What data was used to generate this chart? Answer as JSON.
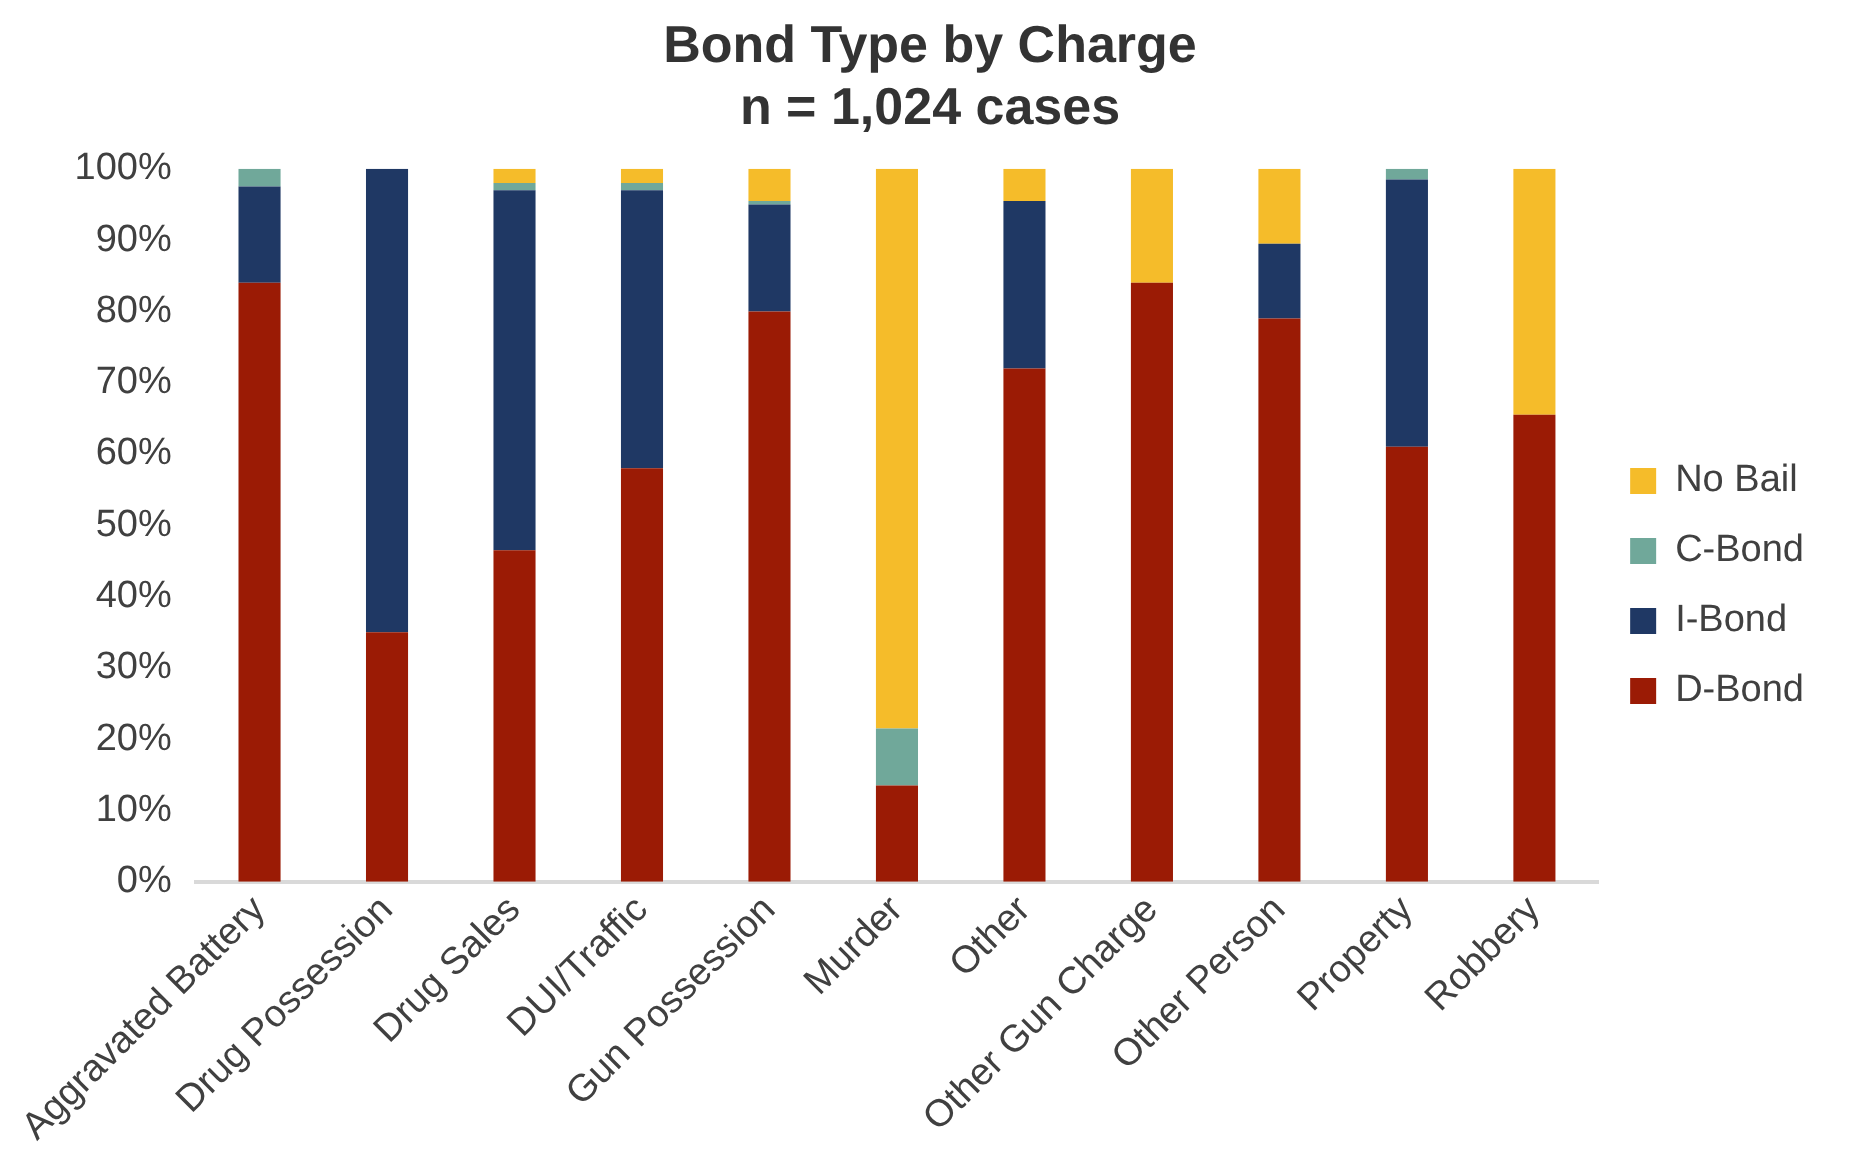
{
  "chart_data": {
    "type": "bar",
    "title": "Bond Type by Charge",
    "subtitle": "n = 1,024 cases",
    "categories": [
      "Aggravated Battery",
      "Drug Possession",
      "Drug Sales",
      "DUI/Traffic",
      "Gun Possession",
      "Murder",
      "Other",
      "Other Gun Charge",
      "Other Person",
      "Property",
      "Robbery"
    ],
    "stacked": true,
    "series": [
      {
        "name": "D-Bond",
        "color": "#9b1b05",
        "values": [
          84,
          35,
          46.5,
          58,
          80,
          13.5,
          72,
          84,
          79,
          61,
          65.5
        ]
      },
      {
        "name": "I-Bond",
        "color": "#1f3864",
        "values": [
          13.5,
          65,
          50.5,
          39,
          15,
          0,
          23.5,
          0,
          10.5,
          37.5,
          0
        ]
      },
      {
        "name": "C-Bond",
        "color": "#70a89a",
        "values": [
          2.5,
          0,
          1,
          1,
          0.5,
          8,
          0,
          0,
          0,
          1.5,
          0
        ]
      },
      {
        "name": "No Bail",
        "color": "#f5bc2a",
        "values": [
          0,
          0,
          2,
          2,
          4.5,
          78.5,
          4.5,
          16,
          10.5,
          0,
          34.5
        ]
      }
    ],
    "ylim": [
      0,
      100
    ],
    "yticks": [
      {
        "value": 0,
        "label": "0%"
      },
      {
        "value": 10,
        "label": "10%"
      },
      {
        "value": 20,
        "label": "20%"
      },
      {
        "value": 30,
        "label": "30%"
      },
      {
        "value": 40,
        "label": "40%"
      },
      {
        "value": 50,
        "label": "50%"
      },
      {
        "value": 60,
        "label": "60%"
      },
      {
        "value": 70,
        "label": "70%"
      },
      {
        "value": 80,
        "label": "80%"
      },
      {
        "value": 90,
        "label": "90%"
      },
      {
        "value": 100,
        "label": "100%"
      }
    ],
    "grid": false,
    "legend": "right"
  }
}
